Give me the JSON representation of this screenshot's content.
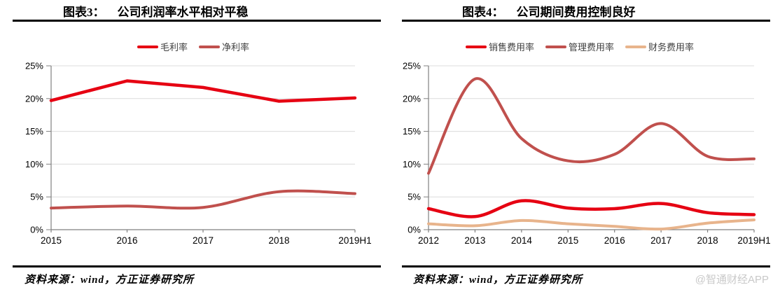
{
  "page": {
    "watermark": "@智通财经APP"
  },
  "panels": [
    {
      "title_label": "图表3：",
      "title": "公司利润率水平相对平稳",
      "source": "资料来源：wind，方正证券研究所"
    },
    {
      "title_label": "图表4：",
      "title": "公司期间费用控制良好",
      "source": "资料来源：wind，方正证券研究所"
    }
  ],
  "colors": {
    "bright_red": "#e60012",
    "brick_red": "#c0504d",
    "tan": "#e8b48c",
    "gridline": "#dcdcdc",
    "axis": "#808080"
  },
  "chart_data": [
    {
      "type": "line",
      "title": "公司利润率水平相对平稳",
      "categories": [
        "2015",
        "2016",
        "2017",
        "2018",
        "2019H1"
      ],
      "series": [
        {
          "name": "毛利率",
          "color": "#e60012",
          "width": 4.5,
          "smooth": false,
          "values": [
            19.7,
            22.7,
            21.7,
            19.6,
            20.1
          ]
        },
        {
          "name": "净利率",
          "color": "#c0504d",
          "width": 4,
          "smooth": true,
          "values": [
            3.3,
            3.6,
            3.4,
            5.8,
            5.5
          ]
        }
      ],
      "xlabel": "",
      "ylabel": "",
      "ylim": [
        0,
        25
      ],
      "ytick_step": 5,
      "ytick_suffix": "%",
      "grid": true,
      "legend_position": "top"
    },
    {
      "type": "line",
      "title": "公司期间费用控制良好",
      "categories": [
        "2012",
        "2013",
        "2014",
        "2015",
        "2016",
        "2017",
        "2018",
        "2019H1"
      ],
      "series": [
        {
          "name": "销售费用率",
          "color": "#e60012",
          "width": 4.5,
          "smooth": true,
          "values": [
            3.2,
            2.0,
            4.4,
            3.3,
            3.2,
            4.0,
            2.6,
            2.3
          ]
        },
        {
          "name": "管理费用率",
          "color": "#c0504d",
          "width": 4,
          "smooth": true,
          "values": [
            8.6,
            23.0,
            13.9,
            10.5,
            11.5,
            16.2,
            11.2,
            10.8
          ]
        },
        {
          "name": "财务费用率",
          "color": "#e8b48c",
          "width": 4,
          "smooth": true,
          "values": [
            0.9,
            0.6,
            1.4,
            0.9,
            0.5,
            0.1,
            1.0,
            1.5
          ]
        }
      ],
      "xlabel": "",
      "ylabel": "",
      "ylim": [
        0,
        25
      ],
      "ytick_step": 5,
      "ytick_suffix": "%",
      "grid": true,
      "legend_position": "top"
    }
  ]
}
